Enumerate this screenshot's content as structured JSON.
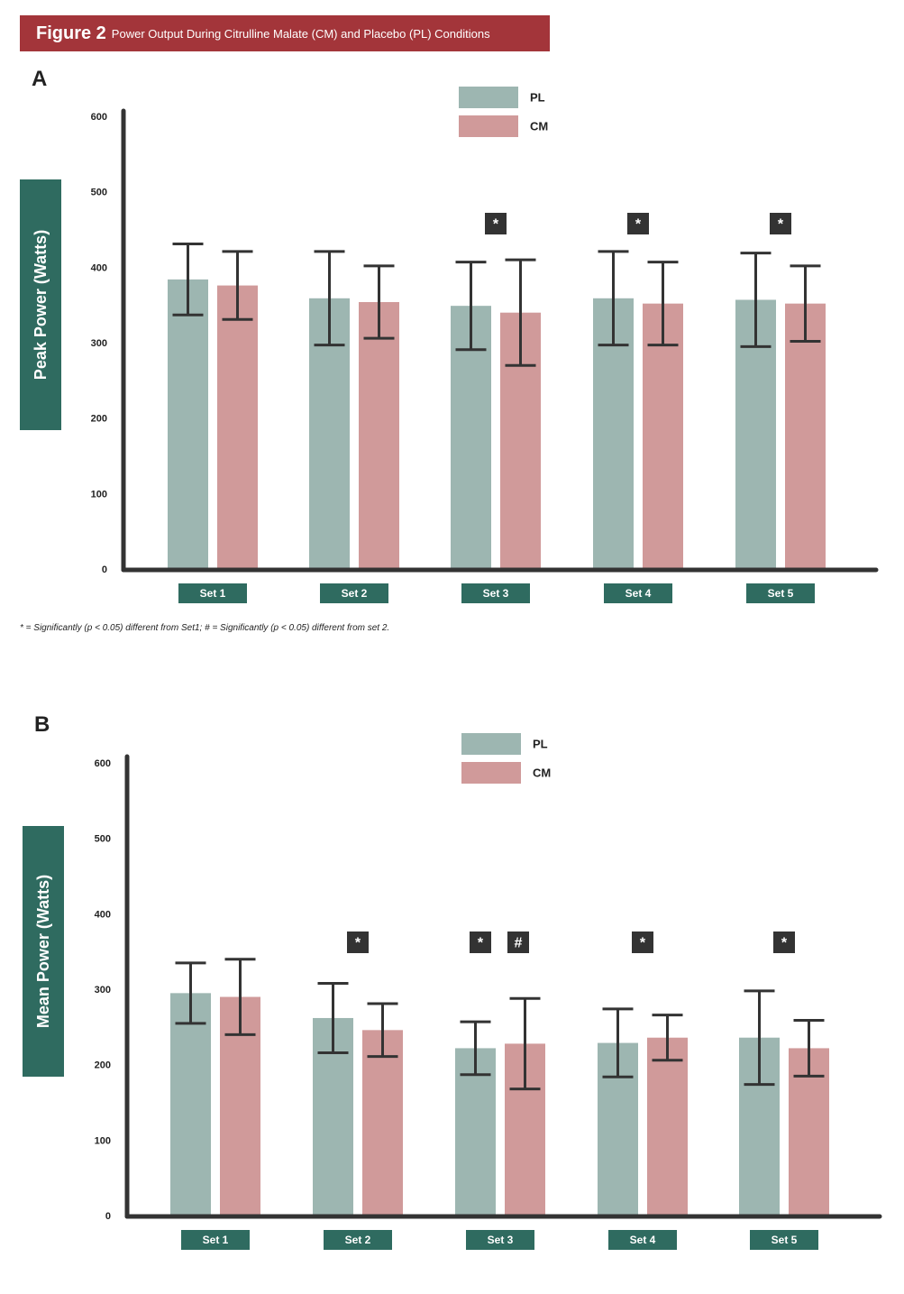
{
  "header": {
    "figure_label": "Figure 2",
    "caption": "Power Output During Citrulline Malate (CM) and Placebo (PL) Conditions"
  },
  "colors": {
    "PL": "#9db6b1",
    "CM": "#d09a9a",
    "axis": "#333333",
    "label_box": "#2f6b60",
    "header": "#a3353a"
  },
  "footnote": "* = Significantly (p < 0.05) different from Set1; # = Significantly (p < 0.05) different from set 2.",
  "chart_data": [
    {
      "type": "bar",
      "panel": "A",
      "ylabel": "Peak Power (Watts)",
      "ylim": [
        0,
        600
      ],
      "yticks": [
        0,
        100,
        200,
        300,
        400,
        500,
        600
      ],
      "categories": [
        "Set 1",
        "Set 2",
        "Set 3",
        "Set 4",
        "Set 5"
      ],
      "legend": {
        "position": "top-center"
      },
      "series": [
        {
          "name": "PL",
          "values": [
            385,
            360,
            350,
            360,
            358
          ],
          "error": [
            47,
            62,
            58,
            62,
            62
          ]
        },
        {
          "name": "CM",
          "values": [
            377,
            355,
            341,
            353,
            353
          ],
          "error": [
            45,
            48,
            70,
            55,
            50
          ]
        }
      ],
      "annotations": [
        {
          "category": "Set 3",
          "marks": [
            "*"
          ]
        },
        {
          "category": "Set 4",
          "marks": [
            "*"
          ]
        },
        {
          "category": "Set 5",
          "marks": [
            "*"
          ]
        }
      ]
    },
    {
      "type": "bar",
      "panel": "B",
      "ylabel": "Mean Power (Watts)",
      "ylim": [
        0,
        600
      ],
      "yticks": [
        0,
        100,
        200,
        300,
        400,
        500,
        600
      ],
      "categories": [
        "Set 1",
        "Set 2",
        "Set 3",
        "Set 4",
        "Set 5"
      ],
      "legend": {
        "position": "top-center"
      },
      "series": [
        {
          "name": "PL",
          "values": [
            296,
            263,
            223,
            230,
            237
          ],
          "error": [
            40,
            46,
            35,
            45,
            62
          ]
        },
        {
          "name": "CM",
          "values": [
            291,
            247,
            229,
            237,
            223
          ],
          "error": [
            50,
            35,
            60,
            30,
            37
          ]
        }
      ],
      "annotations": [
        {
          "category": "Set 2",
          "marks": [
            "*"
          ]
        },
        {
          "category": "Set 3",
          "marks": [
            "*",
            "#"
          ]
        },
        {
          "category": "Set 4",
          "marks": [
            "*"
          ]
        },
        {
          "category": "Set 5",
          "marks": [
            "*"
          ]
        }
      ]
    }
  ]
}
